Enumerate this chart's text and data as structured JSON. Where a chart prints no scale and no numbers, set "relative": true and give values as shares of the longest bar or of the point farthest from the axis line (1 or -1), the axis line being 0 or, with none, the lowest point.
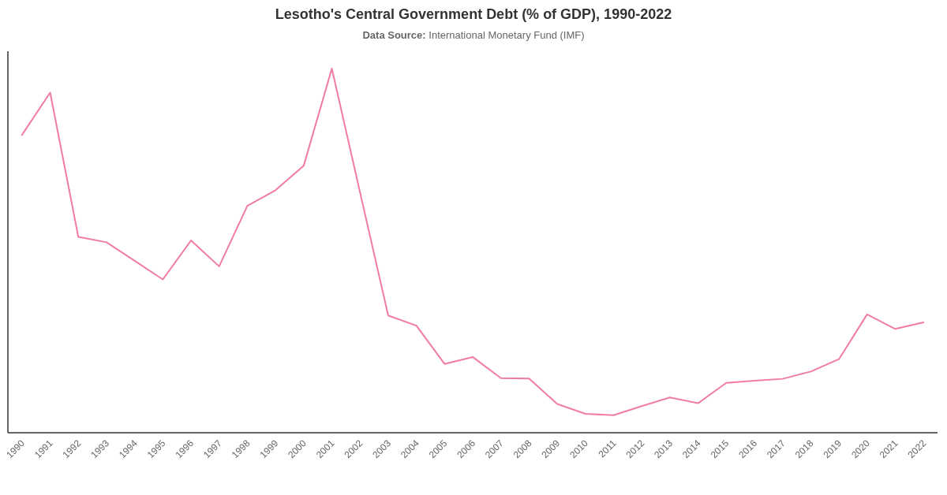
{
  "chart_data": {
    "type": "line",
    "title": "Lesotho's Central Government Debt (% of GDP), 1990-2022",
    "subtitle": "Data Source: International Monetary Fund (IMF)",
    "relative": true,
    "categories": [
      "1990",
      "1991",
      "1992",
      "1993",
      "1994",
      "1995",
      "1996",
      "1997",
      "1998",
      "1999",
      "2000",
      "2001",
      "2002",
      "2003",
      "2004",
      "2005",
      "2006",
      "2007",
      "2008",
      "2009",
      "2010",
      "2011",
      "2012",
      "2013",
      "2014",
      "2015",
      "2016",
      "2017",
      "2018",
      "2019",
      "2020",
      "2021",
      "2022"
    ],
    "series": [
      {
        "color": "#f17ba7",
        "values": [
          0.818,
          0.934,
          0.538,
          0.523,
          0.472,
          0.421,
          0.528,
          0.457,
          0.623,
          0.666,
          0.733,
          1,
          0.66,
          0.322,
          0.294,
          0.189,
          0.208,
          0.15,
          0.149,
          0.079,
          0.052,
          0.048,
          0.073,
          0.097,
          0.081,
          0.137,
          0.143,
          0.148,
          0.168,
          0.202,
          0.325,
          0.285,
          0.303
        ]
      }
    ]
  }
}
